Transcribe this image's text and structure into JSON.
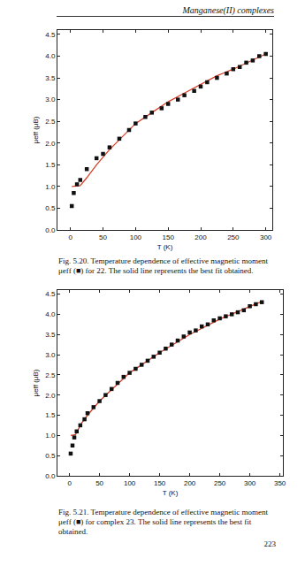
{
  "header": "Manganese(II) complexes",
  "page_number": "223",
  "chart_data": [
    {
      "type": "scatter",
      "caption": "Fig. 5.20. Temperature dependence of effective magnetic moment μeff (■) for 22. The solid line represents the best fit obtained.",
      "x_label": "T (K)",
      "y_label": "μeff (μB)",
      "xlim": [
        -20,
        310
      ],
      "xticks": [
        0,
        50,
        100,
        150,
        200,
        250,
        300
      ],
      "ylim": [
        0,
        4.6
      ],
      "yticks": [
        {
          "value": 0,
          "label": "0.0"
        },
        0.5,
        {
          "value": 1,
          "label": "1.0"
        },
        1.5,
        {
          "value": 2,
          "label": "2.0"
        },
        2.5,
        {
          "value": 3,
          "label": "3.0"
        },
        3.5,
        {
          "value": 4,
          "label": "4.0"
        },
        4.5
      ],
      "grid": false,
      "series": [
        {
          "type": "scatter",
          "marker": "square",
          "color": "#111111",
          "x": [
            2,
            5,
            10,
            15,
            25,
            40,
            50,
            60,
            75,
            90,
            100,
            115,
            125,
            140,
            150,
            165,
            175,
            190,
            200,
            210,
            225,
            240,
            250,
            260,
            270,
            280,
            290,
            300
          ],
          "values": [
            0.55,
            0.85,
            1.05,
            1.15,
            1.4,
            1.65,
            1.75,
            1.9,
            2.1,
            2.3,
            2.45,
            2.6,
            2.7,
            2.8,
            2.9,
            3.0,
            3.1,
            3.2,
            3.3,
            3.4,
            3.5,
            3.6,
            3.7,
            3.75,
            3.85,
            3.9,
            4.0,
            4.05
          ]
        },
        {
          "type": "line",
          "line_style": "solid",
          "color": "#d8402a",
          "x": [
            2,
            15,
            25,
            40,
            60,
            80,
            100,
            125,
            150,
            175,
            200,
            225,
            250,
            275,
            300
          ],
          "values": [
            1.0,
            1.02,
            1.2,
            1.5,
            1.85,
            2.15,
            2.45,
            2.7,
            2.95,
            3.15,
            3.35,
            3.55,
            3.7,
            3.88,
            4.05
          ]
        }
      ]
    },
    {
      "type": "scatter",
      "caption": "Fig. 5.21. Temperature dependence of effective magnetic moment μeff (■) for complex 23. The solid line represents the best fit obtained.",
      "x_label": "T (K)",
      "y_label": "μeff (μB)",
      "xlim": [
        -20,
        355
      ],
      "xticks": [
        0,
        50,
        100,
        150,
        200,
        250,
        300,
        350
      ],
      "ylim": [
        0,
        4.6
      ],
      "yticks": [
        {
          "value": 0,
          "label": "0.0"
        },
        0.5,
        {
          "value": 1,
          "label": "1.0"
        },
        1.5,
        {
          "value": 2,
          "label": "2.0"
        },
        2.5,
        {
          "value": 3,
          "label": "3.0"
        },
        3.5,
        {
          "value": 4,
          "label": "4.0"
        },
        4.5
      ],
      "grid": false,
      "series": [
        {
          "type": "scatter",
          "marker": "square",
          "color": "#111111",
          "x": [
            2,
            5,
            8,
            12,
            18,
            25,
            30,
            40,
            50,
            60,
            70,
            80,
            90,
            100,
            110,
            120,
            130,
            140,
            150,
            160,
            170,
            180,
            190,
            200,
            210,
            220,
            230,
            240,
            250,
            260,
            270,
            280,
            290,
            300,
            310,
            320
          ],
          "values": [
            0.55,
            0.75,
            0.95,
            1.1,
            1.25,
            1.4,
            1.55,
            1.7,
            1.85,
            2.0,
            2.15,
            2.3,
            2.45,
            2.55,
            2.65,
            2.75,
            2.85,
            2.95,
            3.05,
            3.15,
            3.25,
            3.35,
            3.45,
            3.55,
            3.6,
            3.7,
            3.75,
            3.85,
            3.9,
            3.95,
            4.0,
            4.05,
            4.1,
            4.2,
            4.25,
            4.3
          ]
        },
        {
          "type": "line",
          "line_style": "solid",
          "color": "#d8402a",
          "x": [
            2,
            10,
            20,
            30,
            50,
            75,
            100,
            150,
            200,
            250,
            300,
            320
          ],
          "values": [
            1.0,
            1.02,
            1.3,
            1.5,
            1.85,
            2.2,
            2.55,
            3.05,
            3.5,
            3.88,
            4.2,
            4.32
          ]
        }
      ]
    }
  ]
}
